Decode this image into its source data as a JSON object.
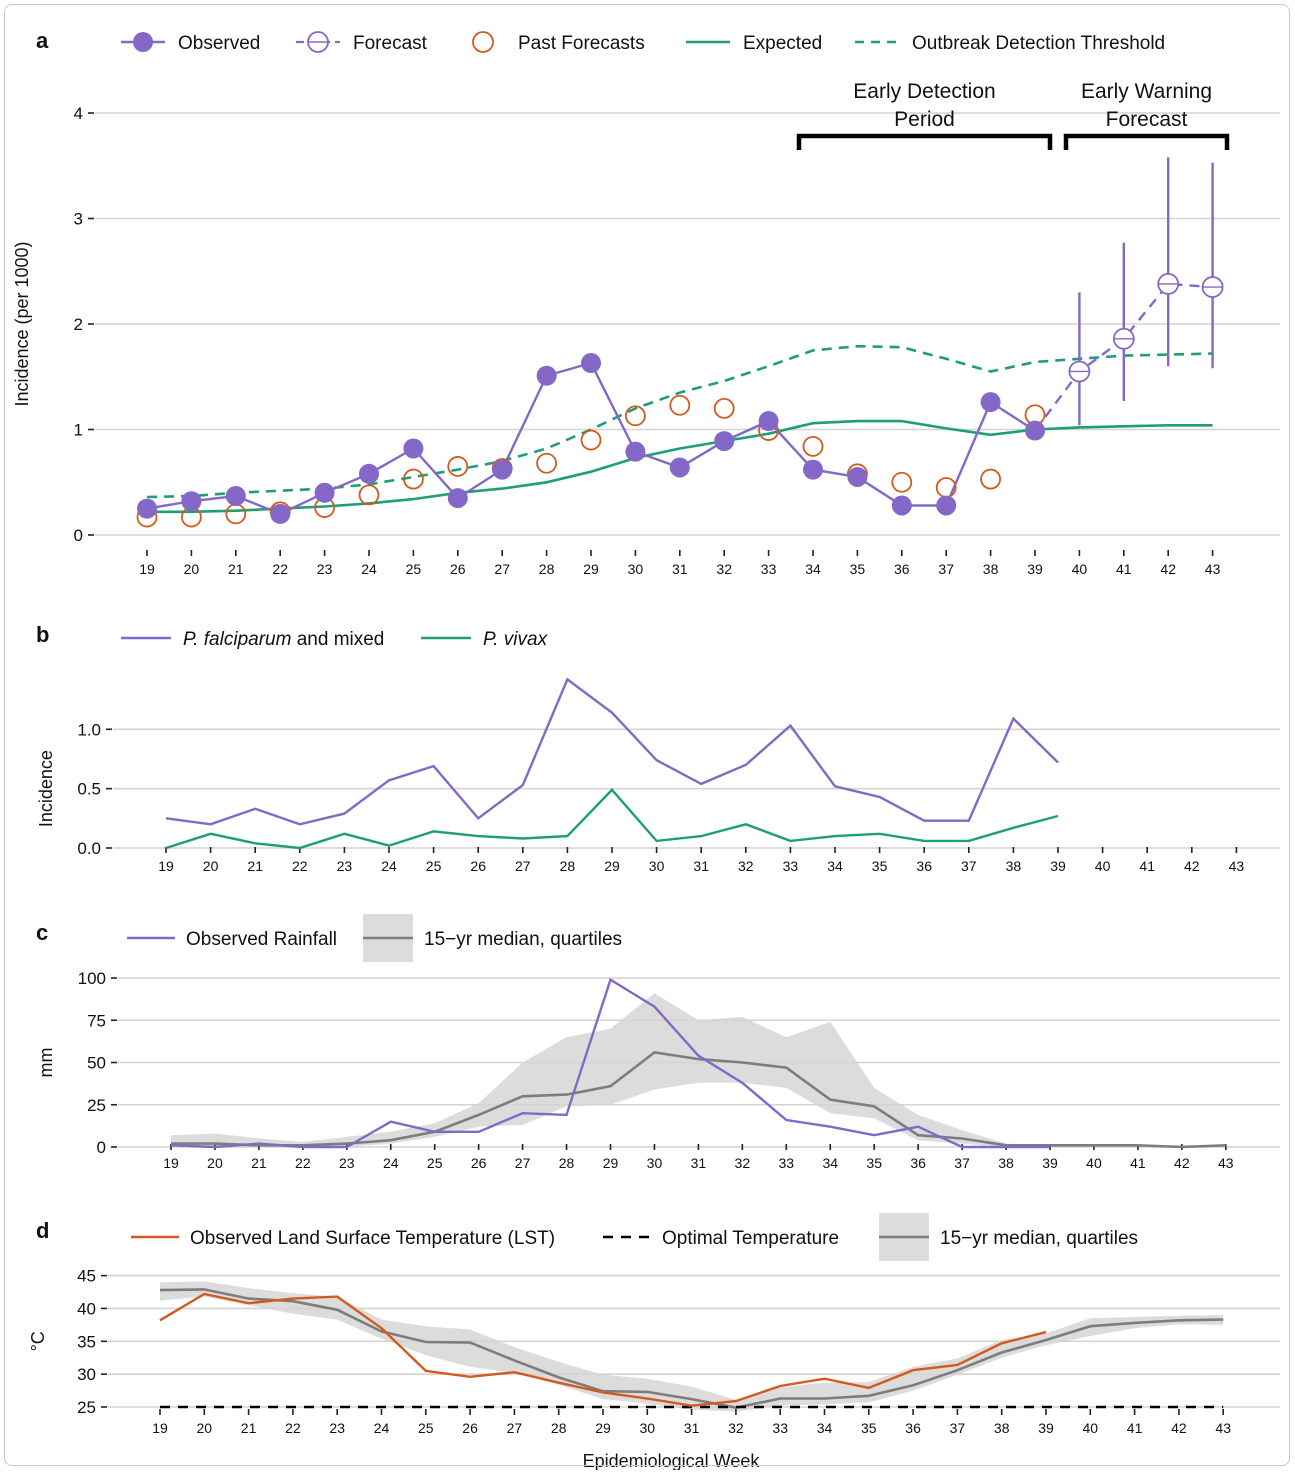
{
  "chart_data": [
    {
      "panel": "a",
      "type": "line",
      "ylabel": "Incidence (per 1000)",
      "xlabel": "",
      "ylim": [
        0,
        4
      ],
      "yticks": [
        0,
        1,
        2,
        3,
        4
      ],
      "x": [
        19,
        20,
        21,
        22,
        23,
        24,
        25,
        26,
        27,
        28,
        29,
        30,
        31,
        32,
        33,
        34,
        35,
        36,
        37,
        38,
        39,
        40,
        41,
        42,
        43
      ],
      "legend": [
        "Observed",
        "Forecast",
        "Past Forecasts",
        "Expected",
        "Outbreak Detection Threshold"
      ],
      "legend_placement": "top",
      "grid": true,
      "series": [
        {
          "name": "Observed",
          "color": "#8468c8",
          "x": [
            19,
            20,
            21,
            22,
            23,
            24,
            25,
            26,
            27,
            28,
            29,
            30,
            31,
            32,
            33,
            34,
            35,
            36,
            37,
            38,
            39
          ],
          "values": [
            0.25,
            0.32,
            0.37,
            0.2,
            0.4,
            0.58,
            0.82,
            0.35,
            0.62,
            1.51,
            1.63,
            0.79,
            0.64,
            0.89,
            1.08,
            0.62,
            0.55,
            0.28,
            0.28,
            1.26,
            0.99
          ]
        },
        {
          "name": "Forecast",
          "color": "#8468c8",
          "x": [
            39,
            40,
            41,
            42,
            43
          ],
          "values": [
            0.99,
            1.55,
            1.86,
            2.38,
            2.35
          ],
          "ci_low": [
            null,
            1.04,
            1.27,
            1.6,
            1.58
          ],
          "ci_high": [
            null,
            2.3,
            2.77,
            3.58,
            3.53
          ]
        },
        {
          "name": "Past Forecasts",
          "color": "#d35a1e",
          "x": [
            19,
            20,
            21,
            22,
            23,
            24,
            25,
            26,
            27,
            28,
            29,
            30,
            31,
            32,
            33,
            34,
            35,
            36,
            37,
            38,
            39
          ],
          "values": [
            0.17,
            0.17,
            0.2,
            0.22,
            0.26,
            0.38,
            0.53,
            0.65,
            0.63,
            0.68,
            0.9,
            1.13,
            1.23,
            1.2,
            0.99,
            0.84,
            0.58,
            0.5,
            0.45,
            0.53,
            1.14
          ]
        },
        {
          "name": "Expected",
          "color": "#1e9e77",
          "x": [
            19,
            20,
            21,
            22,
            23,
            24,
            25,
            26,
            27,
            28,
            29,
            30,
            31,
            32,
            33,
            34,
            35,
            36,
            37,
            38,
            39,
            40,
            41,
            42,
            43
          ],
          "values": [
            0.22,
            0.22,
            0.23,
            0.25,
            0.27,
            0.3,
            0.34,
            0.4,
            0.44,
            0.5,
            0.6,
            0.73,
            0.82,
            0.89,
            0.96,
            1.06,
            1.08,
            1.08,
            1.01,
            0.95,
            1.0,
            1.02,
            1.03,
            1.04,
            1.04
          ]
        },
        {
          "name": "Outbreak Detection Threshold",
          "color": "#1e9e77",
          "x": [
            19,
            20,
            21,
            22,
            23,
            24,
            25,
            26,
            27,
            28,
            29,
            30,
            31,
            32,
            33,
            34,
            35,
            36,
            37,
            38,
            39,
            40,
            41,
            42,
            43
          ],
          "values": [
            0.36,
            0.37,
            0.4,
            0.42,
            0.44,
            0.48,
            0.55,
            0.62,
            0.7,
            0.82,
            1.0,
            1.2,
            1.35,
            1.46,
            1.6,
            1.75,
            1.79,
            1.78,
            1.67,
            1.55,
            1.64,
            1.67,
            1.7,
            1.71,
            1.72
          ]
        }
      ],
      "annotations": [
        {
          "text_lines": [
            "Early Detection",
            "Period"
          ],
          "from": 34,
          "to": 39
        },
        {
          "text_lines": [
            "Early Warning",
            "Forecast"
          ],
          "from": 40,
          "to": 43
        }
      ]
    },
    {
      "panel": "b",
      "type": "line",
      "ylabel": "Incidence",
      "ylim": [
        0,
        1.5
      ],
      "yticks": [
        0.0,
        0.5,
        1.0
      ],
      "ytick_labels": [
        "0.0",
        "0.5",
        "1.0"
      ],
      "x": [
        19,
        20,
        21,
        22,
        23,
        24,
        25,
        26,
        27,
        28,
        29,
        30,
        31,
        32,
        33,
        34,
        35,
        36,
        37,
        38,
        39,
        40,
        41,
        42,
        43
      ],
      "legend": [
        "P. falciparum and mixed",
        "P. vivax"
      ],
      "legend_placement": "top",
      "grid": true,
      "series": [
        {
          "name": "P. falciparum and mixed",
          "color": "#8468c8",
          "x": [
            19,
            20,
            21,
            22,
            23,
            24,
            25,
            26,
            27,
            28,
            29,
            30,
            31,
            32,
            33,
            34,
            35,
            36,
            37,
            38,
            39
          ],
          "values": [
            0.25,
            0.2,
            0.33,
            0.2,
            0.29,
            0.57,
            0.69,
            0.25,
            0.53,
            1.42,
            1.14,
            0.74,
            0.54,
            0.7,
            1.03,
            0.52,
            0.43,
            0.23,
            0.23,
            1.09,
            0.72
          ]
        },
        {
          "name": "P. vivax",
          "color": "#1e9e77",
          "x": [
            19,
            20,
            21,
            22,
            23,
            24,
            25,
            26,
            27,
            28,
            29,
            30,
            31,
            32,
            33,
            34,
            35,
            36,
            37,
            38,
            39
          ],
          "values": [
            0.0,
            0.12,
            0.04,
            0.0,
            0.12,
            0.02,
            0.14,
            0.1,
            0.08,
            0.1,
            0.49,
            0.06,
            0.1,
            0.2,
            0.06,
            0.1,
            0.12,
            0.06,
            0.06,
            0.17,
            0.27
          ]
        }
      ]
    },
    {
      "panel": "c",
      "type": "line",
      "ylabel": "mm",
      "ylim": [
        0,
        100
      ],
      "yticks": [
        0,
        25,
        50,
        75,
        100
      ],
      "x": [
        19,
        20,
        21,
        22,
        23,
        24,
        25,
        26,
        27,
        28,
        29,
        30,
        31,
        32,
        33,
        34,
        35,
        36,
        37,
        38,
        39,
        40,
        41,
        42,
        43
      ],
      "legend": [
        "Observed Rainfall",
        "15−yr median, quartiles"
      ],
      "legend_placement": "top",
      "grid": true,
      "series": [
        {
          "name": "Observed Rainfall",
          "color": "#8468c8",
          "x": [
            19,
            20,
            21,
            22,
            23,
            24,
            25,
            26,
            27,
            28,
            29,
            30,
            31,
            32,
            33,
            34,
            35,
            36,
            37,
            38,
            39
          ],
          "values": [
            1,
            0,
            2,
            0,
            0,
            15,
            9,
            9,
            20,
            19,
            99,
            83,
            54,
            38,
            16,
            12,
            7,
            12,
            0,
            0,
            0
          ]
        },
        {
          "name": "15−yr median, quartiles",
          "color": "#7d7d7d",
          "x": [
            19,
            20,
            21,
            22,
            23,
            24,
            25,
            26,
            27,
            28,
            29,
            30,
            31,
            32,
            33,
            34,
            35,
            36,
            37,
            38,
            39,
            40,
            41,
            42,
            43
          ],
          "values": [
            2,
            2,
            1,
            1,
            2,
            4,
            9,
            19,
            30,
            31,
            36,
            56,
            52,
            50,
            47,
            28,
            24,
            7,
            5,
            1,
            1,
            1,
            1,
            0,
            1
          ],
          "q1": [
            0,
            0,
            0,
            0,
            0,
            2,
            6,
            12,
            13,
            24,
            25,
            34,
            38,
            38,
            35,
            20,
            17,
            4,
            2,
            0,
            0,
            0,
            0,
            0,
            0
          ],
          "q3": [
            7,
            8,
            5,
            3,
            6,
            9,
            14,
            26,
            50,
            65,
            70,
            91,
            75,
            77,
            65,
            74,
            35,
            19,
            10,
            2,
            1,
            1,
            1,
            1,
            1
          ]
        }
      ]
    },
    {
      "panel": "d",
      "type": "line",
      "ylabel": "°C",
      "xlabel": "Epidemiological Week",
      "ylim": [
        25,
        45
      ],
      "yticks": [
        25,
        30,
        35,
        40,
        45
      ],
      "x": [
        19,
        20,
        21,
        22,
        23,
        24,
        25,
        26,
        27,
        28,
        29,
        30,
        31,
        32,
        33,
        34,
        35,
        36,
        37,
        38,
        39,
        40,
        41,
        42,
        43
      ],
      "legend": [
        "Observed Land Surface Temperature (LST)",
        "Optimal Temperature",
        "15−yr median, quartiles"
      ],
      "legend_placement": "top",
      "grid": true,
      "series": [
        {
          "name": "Observed Land Surface Temperature (LST)",
          "color": "#d35a1e",
          "x": [
            19,
            20,
            21,
            22,
            23,
            24,
            25,
            26,
            27,
            28,
            29,
            30,
            31,
            32,
            33,
            34,
            35,
            36,
            37,
            38,
            39
          ],
          "values": [
            38.2,
            42.2,
            40.8,
            41.5,
            41.8,
            37,
            30.5,
            29.6,
            30.3,
            28.7,
            27.2,
            26.3,
            25.2,
            25.9,
            28.2,
            29.3,
            27.9,
            30.6,
            31.4,
            34.7,
            36.4
          ]
        },
        {
          "name": "Optimal Temperature",
          "color": "#000000",
          "x": [
            19,
            43
          ],
          "values": [
            25,
            25
          ]
        },
        {
          "name": "15−yr median, quartiles",
          "color": "#7d7d7d",
          "x": [
            19,
            20,
            21,
            22,
            23,
            24,
            25,
            26,
            27,
            28,
            29,
            30,
            31,
            32,
            33,
            34,
            35,
            36,
            37,
            38,
            39,
            40,
            41,
            42,
            43
          ],
          "values": [
            42.8,
            42.9,
            41.5,
            41.1,
            39.8,
            36.5,
            34.9,
            34.8,
            32.1,
            29.5,
            27.4,
            27.3,
            26.2,
            24.9,
            26.3,
            26.3,
            26.7,
            28.3,
            30.6,
            33.3,
            35.2,
            37.3,
            37.8,
            38.2,
            38.3
          ],
          "q1": [
            41.2,
            41.8,
            40.5,
            39.2,
            38.3,
            35.4,
            32.9,
            31.1,
            30.2,
            28.4,
            26.2,
            25.5,
            24.6,
            24.3,
            25.2,
            25.4,
            25.7,
            27.5,
            29.9,
            32.5,
            34.4,
            35.8,
            37.0,
            37.6,
            37.5
          ],
          "q3": [
            44.0,
            44.1,
            43.1,
            42.3,
            41.8,
            38.3,
            37.3,
            36.8,
            34.1,
            31.9,
            29.9,
            29.3,
            28.1,
            26.1,
            28.0,
            28.7,
            28.8,
            31.1,
            32.4,
            35.2,
            36.2,
            38.5,
            38.7,
            38.9,
            39.0
          ]
        }
      ]
    }
  ]
}
